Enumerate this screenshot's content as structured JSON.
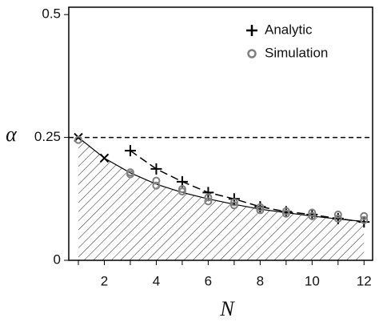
{
  "chart_data": {
    "type": "line",
    "x_label": "N",
    "y_label": "α",
    "xlim": [
      0.63,
      12.33
    ],
    "ylim": [
      0,
      0.515
    ],
    "xticks": [
      2,
      4,
      6,
      8,
      10,
      12
    ],
    "xminorticks": [
      1,
      3,
      5,
      7,
      9,
      11
    ],
    "yticks": [
      0,
      0.25,
      0.5
    ],
    "hline": 0.25,
    "bound": {
      "x": [
        1,
        2,
        3,
        4,
        5,
        6,
        7,
        8,
        9,
        10,
        11,
        12
      ],
      "values": [
        0.25,
        0.208,
        0.178,
        0.155,
        0.138,
        0.125,
        0.114,
        0.104,
        0.097,
        0.09,
        0.084,
        0.079
      ],
      "color": "#000000"
    },
    "series": [
      {
        "name": "Analytic",
        "color": "#000000",
        "marker": "+",
        "dashed": true,
        "x": [
          3,
          4,
          5,
          6,
          7,
          8,
          9,
          10,
          11,
          12
        ],
        "values": [
          0.223,
          0.186,
          0.16,
          0.138,
          0.125,
          0.109,
          0.099,
          0.093,
          0.085,
          0.078
        ]
      },
      {
        "color": "#000000",
        "marker": "x",
        "x": [
          1,
          2
        ],
        "values": [
          0.25,
          0.208
        ]
      },
      {
        "name": "Simulation",
        "color": "#808080",
        "marker": "o",
        "x": [
          1,
          3,
          3,
          4,
          4,
          5,
          5,
          6,
          6,
          7,
          7,
          8,
          8,
          9,
          9,
          10,
          10,
          11,
          11,
          12,
          12
        ],
        "values": [
          0.245,
          0.179,
          0.175,
          0.162,
          0.152,
          0.145,
          0.14,
          0.128,
          0.12,
          0.118,
          0.112,
          0.108,
          0.102,
          0.1,
          0.095,
          0.097,
          0.09,
          0.093,
          0.085,
          0.09,
          0.082
        ]
      }
    ],
    "legend": "upper-right"
  }
}
